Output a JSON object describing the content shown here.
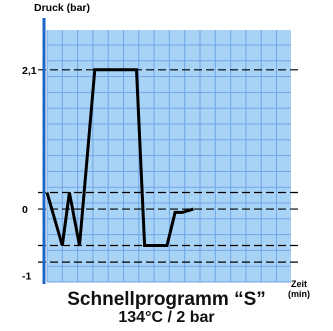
{
  "chart_data": {
    "type": "line",
    "title": "Schnellprogramm “S”",
    "subtitle": "134°C / 2 bar",
    "ylabel": "Druck (bar)",
    "xlabel": "Zeit",
    "xlabel_unit": "(min)",
    "yticks": [
      {
        "label": "2,1",
        "value": 2.1
      },
      {
        "label": "0",
        "value": 0
      },
      {
        "label": "-1",
        "value": -1
      }
    ],
    "x_units": "unlabeled (relative)",
    "xlim": [
      0,
      24
    ],
    "ylim": [
      -1.1,
      2.7
    ],
    "reference_lines_y": [
      2.1,
      0.25,
      0.0,
      -0.55,
      -0.8
    ],
    "grid": true,
    "series": [
      {
        "name": "",
        "x": [
          0,
          1.5,
          2.2,
          3.2,
          4.7,
          6.3,
          8.1,
          8.8,
          9.6,
          11.8,
          12.6,
          13.3,
          14.4
        ],
        "y": [
          0.25,
          -0.55,
          0.25,
          -0.55,
          2.1,
          2.1,
          2.1,
          2.1,
          -0.55,
          -0.55,
          -0.05,
          -0.05,
          0.0
        ]
      }
    ],
    "colors": {
      "grid_background": "#a9d3f5",
      "grid_lines": "#6fa6e8",
      "line": "#000000",
      "reference_lines": "#000000"
    }
  }
}
